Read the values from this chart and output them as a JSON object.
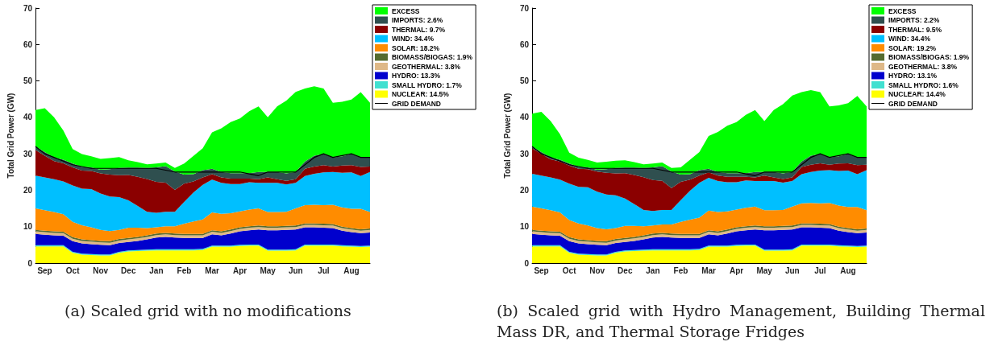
{
  "chart_data": [
    {
      "type": "area",
      "stacked": true,
      "ylabel": "Total Grid Power (GW)",
      "legend": "right",
      "grid": false,
      "ylim": [
        0,
        70
      ],
      "yticks": [
        0,
        10,
        20,
        30,
        40,
        50,
        60,
        70
      ],
      "categories": [
        null,
        "Sep",
        null,
        null,
        "Oct",
        null,
        null,
        "Nov",
        null,
        null,
        "Dec",
        null,
        null,
        "Jan",
        null,
        null,
        "Feb",
        null,
        null,
        "Mar",
        null,
        null,
        "Apr",
        null,
        null,
        "May",
        null,
        null,
        "Jun",
        null,
        null,
        "Jul",
        null,
        null,
        "Aug",
        null,
        null
      ],
      "series": [
        {
          "name": "NUCLEAR: 14.5%",
          "color": "#ffff00",
          "values": [
            4.6,
            4.6,
            4.6,
            4.6,
            2.8,
            2.3,
            2.2,
            2.1,
            2.1,
            2.8,
            3.2,
            3.3,
            3.4,
            3.5,
            3.5,
            3.5,
            3.5,
            3.5,
            3.6,
            4.5,
            4.5,
            4.5,
            4.7,
            4.8,
            4.8,
            3.4,
            3.4,
            3.4,
            3.5,
            4.8,
            4.8,
            4.8,
            4.8,
            4.6,
            4.5,
            4.4,
            4.5
          ]
        },
        {
          "name": "SMALL HYDRO: 1.7%",
          "color": "#40e0d0",
          "values": [
            0.3,
            0.3,
            0.3,
            0.3,
            0.3,
            0.3,
            0.3,
            0.3,
            0.3,
            0.3,
            0.3,
            0.3,
            0.3,
            0.3,
            0.3,
            0.3,
            0.3,
            0.3,
            0.3,
            0.3,
            0.3,
            0.3,
            0.3,
            0.3,
            0.3,
            0.3,
            0.3,
            0.3,
            0.3,
            0.3,
            0.3,
            0.3,
            0.3,
            0.3,
            0.3,
            0.3,
            0.3
          ]
        },
        {
          "name": "HYDRO: 13.3%",
          "color": "#0000cd",
          "values": [
            3.1,
            2.9,
            2.7,
            2.6,
            2.9,
            2.8,
            2.7,
            2.6,
            2.5,
            2.4,
            2.3,
            2.5,
            2.8,
            3.2,
            3.4,
            3.2,
            3.1,
            3.1,
            3.0,
            3.1,
            2.8,
            3.3,
            3.7,
            3.9,
            4.1,
            5.3,
            5.3,
            5.4,
            5.4,
            4.7,
            4.7,
            4.6,
            4.5,
            4.0,
            3.7,
            3.5,
            3.6
          ]
        },
        {
          "name": "GEOTHERMAL: 3.8%",
          "color": "#deb887",
          "values": [
            0.7,
            0.7,
            0.7,
            0.7,
            0.7,
            0.7,
            0.7,
            0.7,
            0.7,
            0.7,
            0.7,
            0.7,
            0.7,
            0.7,
            0.7,
            0.7,
            0.7,
            0.7,
            0.7,
            0.7,
            0.7,
            0.7,
            0.7,
            0.7,
            0.7,
            0.7,
            0.7,
            0.7,
            0.7,
            0.7,
            0.7,
            0.7,
            0.7,
            0.7,
            0.7,
            0.7,
            0.7
          ]
        },
        {
          "name": "BIOMASS/BIOGAS: 1.9%",
          "color": "#556b2f",
          "values": [
            0.4,
            0.4,
            0.4,
            0.4,
            0.4,
            0.4,
            0.4,
            0.4,
            0.4,
            0.4,
            0.4,
            0.4,
            0.4,
            0.4,
            0.4,
            0.4,
            0.4,
            0.4,
            0.4,
            0.4,
            0.4,
            0.4,
            0.4,
            0.4,
            0.4,
            0.4,
            0.4,
            0.4,
            0.4,
            0.4,
            0.4,
            0.4,
            0.4,
            0.4,
            0.4,
            0.4,
            0.4
          ]
        },
        {
          "name": "SOLAR: 18.2%",
          "color": "#ff8c00",
          "values": [
            5.9,
            5.6,
            5.3,
            4.8,
            4.2,
            3.9,
            3.5,
            3.0,
            2.8,
            2.5,
            2.8,
            2.5,
            2.0,
            1.7,
            1.8,
            2.0,
            2.8,
            3.4,
            4.0,
            4.9,
            4.8,
            4.5,
            4.4,
            4.6,
            4.7,
            3.9,
            3.9,
            3.9,
            4.7,
            5.0,
            5.1,
            5.1,
            5.3,
            5.3,
            5.3,
            5.6,
            4.5
          ]
        },
        {
          "name": "WIND: 34.4%",
          "color": "#00bfff",
          "values": [
            9,
            9,
            9,
            9,
            10,
            10,
            10.5,
            10,
            9.5,
            9,
            7.5,
            6,
            4.5,
            4,
            4,
            4,
            6,
            8,
            9.5,
            9,
            8.5,
            8,
            7.5,
            7.5,
            7,
            8,
            8,
            7.5,
            7,
            8,
            8.5,
            9,
            9,
            9.5,
            10,
            9,
            11
          ]
        },
        {
          "name": "THERMAL: 9.7%",
          "color": "#8b0000",
          "values": [
            7,
            6,
            5,
            5,
            5,
            5,
            5,
            5.5,
            6,
            6,
            7,
            8,
            9,
            8.5,
            8,
            6,
            5,
            3,
            2,
            1.5,
            1.5,
            1.5,
            1.5,
            1,
            1,
            1.5,
            1,
            1,
            1,
            2,
            2,
            2,
            1.5,
            2,
            2,
            2.5,
            1.5
          ]
        },
        {
          "name": "IMPORTS: 2.6%",
          "color": "#2f4f4f",
          "values": [
            1,
            1,
            1,
            1,
            1,
            1,
            1,
            1,
            1.5,
            2,
            2,
            2.5,
            3,
            4,
            4.5,
            5,
            2.5,
            2,
            2,
            1.5,
            1.5,
            1.5,
            1.5,
            1.5,
            2,
            1.5,
            2,
            2,
            2,
            2,
            3,
            3,
            2.5,
            2.5,
            3,
            2.5,
            2.5
          ]
        },
        {
          "name": "EXCESS",
          "color": "#00ff00",
          "values": [
            10,
            12,
            11,
            8,
            4,
            3.5,
            3,
            3,
            3,
            3,
            2,
            1.5,
            1,
            1,
            1,
            1,
            3,
            5,
            6,
            10,
            12,
            14,
            15,
            17,
            18,
            15,
            18,
            20,
            22,
            20,
            19,
            18,
            15,
            15,
            15,
            18,
            15
          ]
        },
        {
          "name": "GRID DEMAND",
          "type": "line",
          "color": "#000000",
          "values": [
            32,
            30,
            29,
            28,
            27,
            26.5,
            26,
            26,
            26,
            26,
            26,
            26,
            26,
            26,
            25.5,
            25,
            25,
            25,
            25,
            25,
            25,
            25,
            25,
            24.5,
            24,
            25,
            25,
            25,
            25,
            27,
            29,
            30,
            29,
            29.5,
            30,
            29,
            29
          ]
        }
      ],
      "annotations": [
        "(a) Scaled grid with no modifications"
      ]
    },
    {
      "type": "area",
      "stacked": true,
      "ylabel": "Total Grid Power (GW)",
      "legend": "right",
      "grid": false,
      "ylim": [
        0,
        70
      ],
      "yticks": [
        0,
        10,
        20,
        30,
        40,
        50,
        60,
        70
      ],
      "categories": [
        null,
        "Sep",
        null,
        null,
        "Oct",
        null,
        null,
        "Nov",
        null,
        null,
        "Dec",
        null,
        null,
        "Jan",
        null,
        null,
        "Feb",
        null,
        null,
        "Mar",
        null,
        null,
        "Apr",
        null,
        null,
        "May",
        null,
        null,
        "Jun",
        null,
        null,
        "Jul",
        null,
        null,
        "Aug",
        null,
        null
      ],
      "series": [
        {
          "name": "NUCLEAR: 14.4%",
          "color": "#ffff00",
          "values": [
            4.6,
            4.6,
            4.6,
            4.6,
            2.8,
            2.3,
            2.2,
            2.1,
            2.1,
            2.8,
            3.2,
            3.3,
            3.4,
            3.5,
            3.5,
            3.5,
            3.5,
            3.5,
            3.6,
            4.5,
            4.5,
            4.5,
            4.7,
            4.8,
            4.8,
            3.4,
            3.4,
            3.4,
            3.5,
            4.8,
            4.8,
            4.8,
            4.8,
            4.6,
            4.5,
            4.4,
            4.5
          ]
        },
        {
          "name": "SMALL HYDRO: 1.6%",
          "color": "#40e0d0",
          "values": [
            0.3,
            0.3,
            0.3,
            0.3,
            0.3,
            0.3,
            0.3,
            0.3,
            0.3,
            0.3,
            0.3,
            0.3,
            0.3,
            0.3,
            0.3,
            0.3,
            0.3,
            0.3,
            0.3,
            0.3,
            0.3,
            0.3,
            0.3,
            0.3,
            0.3,
            0.3,
            0.3,
            0.3,
            0.3,
            0.3,
            0.3,
            0.3,
            0.3,
            0.3,
            0.3,
            0.3,
            0.3
          ]
        },
        {
          "name": "HYDRO: 13.1%",
          "color": "#0000cd",
          "values": [
            3.1,
            2.9,
            2.7,
            2.6,
            2.9,
            2.8,
            2.7,
            2.6,
            2.5,
            2.4,
            2.3,
            2.5,
            2.8,
            3.2,
            3.4,
            3.2,
            3.1,
            3.1,
            3.0,
            3.1,
            2.8,
            3.3,
            3.7,
            3.9,
            4.1,
            5.3,
            5.3,
            5.4,
            5.4,
            4.7,
            4.7,
            4.6,
            4.5,
            4.0,
            3.7,
            3.5,
            3.6
          ]
        },
        {
          "name": "GEOTHERMAL: 3.8%",
          "color": "#deb887",
          "values": [
            0.7,
            0.7,
            0.7,
            0.7,
            0.7,
            0.7,
            0.7,
            0.7,
            0.7,
            0.7,
            0.7,
            0.7,
            0.7,
            0.7,
            0.7,
            0.7,
            0.7,
            0.7,
            0.7,
            0.7,
            0.7,
            0.7,
            0.7,
            0.7,
            0.7,
            0.7,
            0.7,
            0.7,
            0.7,
            0.7,
            0.7,
            0.7,
            0.7,
            0.7,
            0.7,
            0.7,
            0.7
          ]
        },
        {
          "name": "BIOMASS/BIOGAS: 1.9%",
          "color": "#556b2f",
          "values": [
            0.4,
            0.4,
            0.4,
            0.4,
            0.4,
            0.4,
            0.4,
            0.4,
            0.4,
            0.4,
            0.4,
            0.4,
            0.4,
            0.4,
            0.4,
            0.4,
            0.4,
            0.4,
            0.4,
            0.4,
            0.4,
            0.4,
            0.4,
            0.4,
            0.4,
            0.4,
            0.4,
            0.4,
            0.4,
            0.4,
            0.4,
            0.4,
            0.4,
            0.4,
            0.4,
            0.4,
            0.4
          ]
        },
        {
          "name": "SOLAR: 19.2%",
          "color": "#ff8c00",
          "values": [
            6.4,
            6.1,
            5.8,
            5.3,
            4.7,
            4.4,
            4.0,
            3.5,
            3.3,
            3.0,
            3.3,
            3.0,
            2.5,
            2.2,
            2.3,
            2.5,
            3.3,
            3.9,
            4.5,
            5.4,
            5.3,
            5.0,
            4.9,
            5.1,
            5.2,
            4.4,
            4.4,
            4.4,
            5.2,
            5.5,
            5.6,
            5.6,
            5.8,
            5.8,
            5.8,
            6.1,
            5.0
          ]
        },
        {
          "name": "WIND: 34.4%",
          "color": "#00bfff",
          "values": [
            9,
            9,
            9,
            9,
            10,
            10,
            10.5,
            10,
            9.5,
            9,
            7.5,
            6,
            4.5,
            4,
            4,
            4,
            6,
            8,
            9.5,
            9,
            8.5,
            8,
            7.5,
            7.5,
            7,
            8,
            8,
            7.5,
            7,
            8,
            8.5,
            9,
            9,
            9.5,
            10,
            9,
            11
          ]
        },
        {
          "name": "THERMAL: 9.5%",
          "color": "#8b0000",
          "values": [
            7,
            6,
            5,
            5,
            5,
            5,
            5,
            5.5,
            6,
            6,
            7,
            8,
            9,
            8.5,
            8,
            6,
            5,
            3,
            2,
            1.5,
            1.5,
            1.5,
            1.5,
            1,
            1,
            1.5,
            1,
            1,
            1,
            2,
            2,
            2,
            1.5,
            2,
            2,
            2.5,
            1.5
          ]
        },
        {
          "name": "IMPORTS: 2.2%",
          "color": "#2f4f4f",
          "values": [
            0.5,
            0.5,
            0.5,
            0.5,
            0.5,
            0.5,
            0.5,
            0.5,
            1,
            1.5,
            1.5,
            2,
            2.5,
            3.5,
            4,
            4.5,
            2,
            1.5,
            1.5,
            1,
            1,
            1,
            1,
            1,
            1.5,
            1,
            1.5,
            1.5,
            1.5,
            1.5,
            2.5,
            2.5,
            2,
            2,
            2.5,
            2,
            2
          ]
        },
        {
          "name": "EXCESS",
          "color": "#00ff00",
          "values": [
            9,
            11,
            10,
            7,
            3,
            2.5,
            2,
            2,
            2,
            2,
            2,
            1.5,
            1,
            1,
            1,
            1,
            2,
            4,
            5,
            9,
            11,
            13,
            14,
            16,
            17,
            14,
            17,
            19,
            21,
            19,
            18,
            17,
            14,
            14,
            14,
            17,
            14
          ]
        },
        {
          "name": "GRID DEMAND",
          "type": "line",
          "color": "#000000",
          "values": [
            32,
            30,
            29,
            28,
            27,
            26.5,
            26,
            26,
            26,
            26,
            26,
            26,
            26,
            26,
            25.5,
            25,
            25,
            25,
            25,
            25,
            25,
            25,
            25,
            24.5,
            24,
            25,
            25,
            25,
            25,
            27,
            29,
            30,
            29,
            29.5,
            30,
            29,
            29
          ]
        }
      ],
      "annotations": [
        "(b) Scaled grid with Hydro Management, Building Thermal Mass DR, and Thermal Storage Fridges"
      ]
    }
  ]
}
